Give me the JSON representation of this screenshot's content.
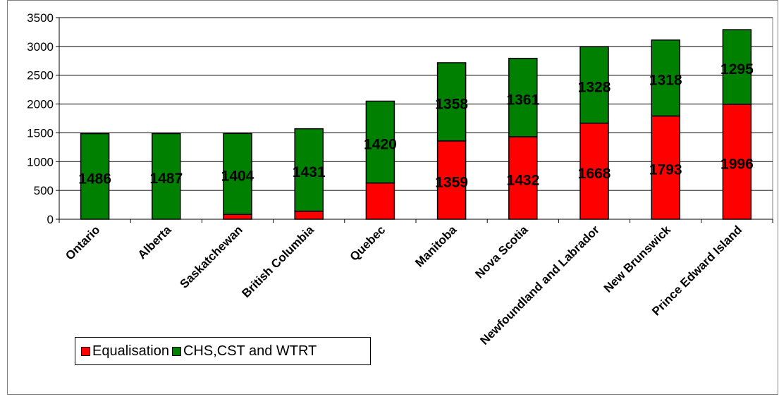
{
  "chart_data": {
    "type": "bar",
    "stacked": true,
    "categories": [
      "Ontario",
      "Alberta",
      "Saskatchewan",
      "British Columbia",
      "Quebec",
      "Manitoba",
      "Nova Scotia",
      "Newfoundland and Labrador",
      "New Brunswick",
      "Prince Edward Island"
    ],
    "series": [
      {
        "name": "Equalisation",
        "color": "#ff0000",
        "values": [
          0,
          0,
          85,
          140,
          630,
          1359,
          1432,
          1668,
          1793,
          1996
        ],
        "labels": [
          "",
          "",
          "",
          "",
          "",
          "1359",
          "1432",
          "1668",
          "1793",
          "1996"
        ]
      },
      {
        "name": "CHS,CST and WTRT",
        "color": "#008000",
        "values": [
          1486,
          1487,
          1404,
          1431,
          1420,
          1358,
          1361,
          1328,
          1318,
          1295
        ],
        "labels": [
          "1486",
          "1487",
          "1404",
          "1431",
          "1420",
          "1358",
          "1361",
          "1328",
          "1318",
          "1295"
        ]
      }
    ],
    "ylim": [
      0,
      3500
    ],
    "yticks": [
      "0",
      "500",
      "1000",
      "1500",
      "2000",
      "2500",
      "3000",
      "3500"
    ],
    "grid": "y",
    "legend": "bottom-left"
  }
}
